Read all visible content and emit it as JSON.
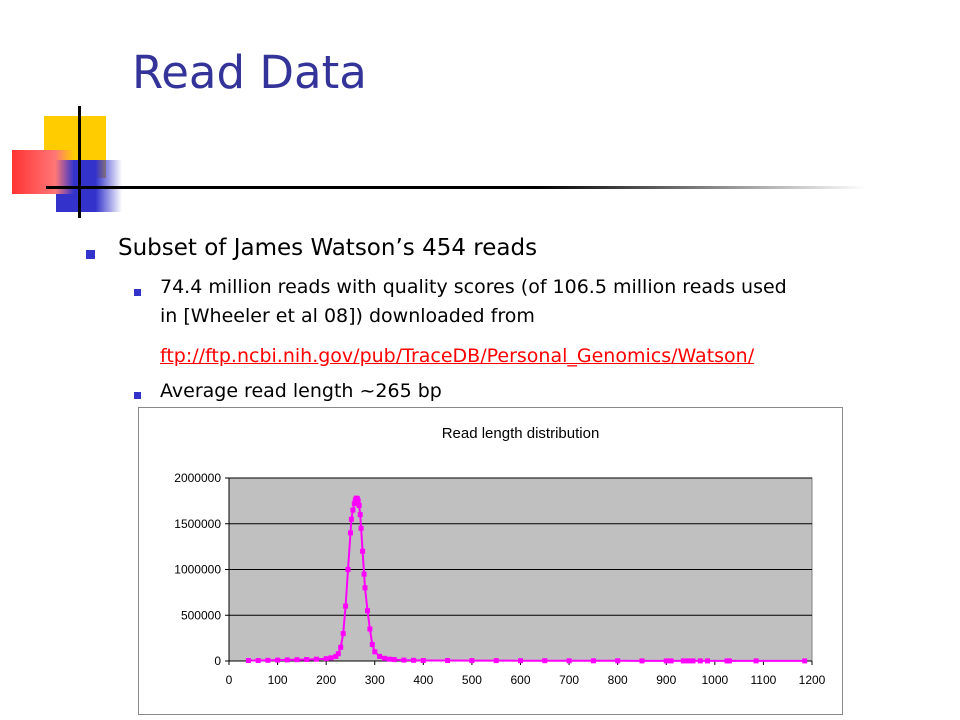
{
  "slide": {
    "title": "Read Data",
    "bullets": [
      "Subset of James Watson’s 454 reads",
      "74.4 million reads with quality scores (of 106.5 million reads used",
      "in [Wheeler et al 08]) downloaded from",
      "ftp://ftp.ncbi.nih.gov/pub/TraceDB/Personal_Genomics/Watson/",
      "Average read length ~265 bp"
    ]
  },
  "colors": {
    "title": "#333399",
    "bullet": "#3333cc",
    "link": "#ff0000",
    "series": "#ff00ff",
    "plot_bg": "#c0c0c0"
  },
  "chart_data": {
    "type": "scatter",
    "title": "Read length distribution",
    "xlabel": "",
    "ylabel": "",
    "xlim": [
      0,
      1200
    ],
    "ylim": [
      0,
      2000000
    ],
    "x_ticks": [
      "0",
      "100",
      "200",
      "300",
      "400",
      "500",
      "600",
      "700",
      "800",
      "900",
      "1000",
      "1100",
      "1200"
    ],
    "y_ticks": [
      "0",
      "500000",
      "1000000",
      "1500000",
      "2000000"
    ],
    "grid": true,
    "legend": "none",
    "series": [
      {
        "x": [
          40,
          60,
          80,
          100,
          120,
          140,
          160,
          180,
          200,
          210,
          220,
          225,
          230,
          235,
          240,
          245,
          250,
          252,
          255,
          258,
          260,
          262,
          264,
          266,
          268,
          270,
          272,
          275,
          278,
          280,
          285,
          290,
          295,
          300,
          310,
          320,
          330,
          340,
          360,
          380,
          400,
          450,
          500,
          550,
          600,
          650,
          700,
          750,
          800,
          850,
          900,
          910,
          935,
          945,
          955,
          970,
          985,
          1025,
          1030,
          1085,
          1185
        ],
        "y": [
          5000,
          6000,
          8000,
          10000,
          12000,
          14000,
          16000,
          20000,
          25000,
          35000,
          50000,
          80000,
          150000,
          300000,
          600000,
          1000000,
          1400000,
          1550000,
          1650000,
          1720000,
          1760000,
          1780000,
          1775000,
          1750000,
          1700000,
          1600000,
          1450000,
          1200000,
          950000,
          800000,
          550000,
          350000,
          180000,
          100000,
          50000,
          30000,
          20000,
          15000,
          10000,
          8000,
          6000,
          5000,
          4500,
          4000,
          3500,
          3000,
          2500,
          2000,
          2000,
          1500,
          1500,
          1000,
          1000,
          1000,
          1000,
          1000,
          1000,
          1000,
          1000,
          1000,
          1000
        ]
      }
    ]
  }
}
